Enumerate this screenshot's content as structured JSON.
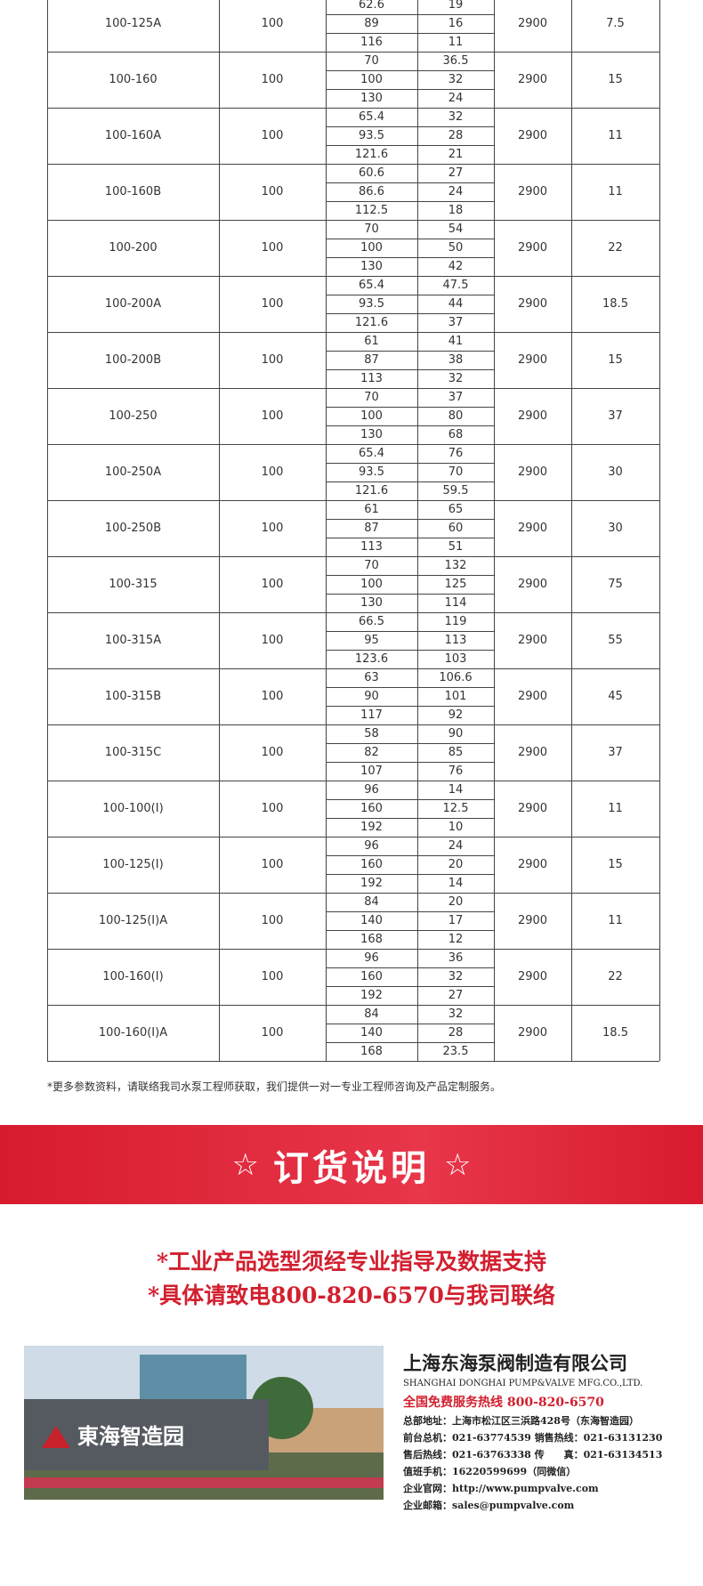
{
  "table": {
    "rows": [
      {
        "model": "100-125A",
        "caliber": "100",
        "flow": [
          "62.6",
          "89",
          "116"
        ],
        "head": [
          "19",
          "16",
          "11"
        ],
        "speed": "2900",
        "power": "7.5"
      },
      {
        "model": "100-160",
        "caliber": "100",
        "flow": [
          "70",
          "100",
          "130"
        ],
        "head": [
          "36.5",
          "32",
          "24"
        ],
        "speed": "2900",
        "power": "15"
      },
      {
        "model": "100-160A",
        "caliber": "100",
        "flow": [
          "65.4",
          "93.5",
          "121.6"
        ],
        "head": [
          "32",
          "28",
          "21"
        ],
        "speed": "2900",
        "power": "11"
      },
      {
        "model": "100-160B",
        "caliber": "100",
        "flow": [
          "60.6",
          "86.6",
          "112.5"
        ],
        "head": [
          "27",
          "24",
          "18"
        ],
        "speed": "2900",
        "power": "11"
      },
      {
        "model": "100-200",
        "caliber": "100",
        "flow": [
          "70",
          "100",
          "130"
        ],
        "head": [
          "54",
          "50",
          "42"
        ],
        "speed": "2900",
        "power": "22"
      },
      {
        "model": "100-200A",
        "caliber": "100",
        "flow": [
          "65.4",
          "93.5",
          "121.6"
        ],
        "head": [
          "47.5",
          "44",
          "37"
        ],
        "speed": "2900",
        "power": "18.5"
      },
      {
        "model": "100-200B",
        "caliber": "100",
        "flow": [
          "61",
          "87",
          "113"
        ],
        "head": [
          "41",
          "38",
          "32"
        ],
        "speed": "2900",
        "power": "15"
      },
      {
        "model": "100-250",
        "caliber": "100",
        "flow": [
          "70",
          "100",
          "130"
        ],
        "head": [
          "37",
          "80",
          "68"
        ],
        "speed": "2900",
        "power": "37"
      },
      {
        "model": "100-250A",
        "caliber": "100",
        "flow": [
          "65.4",
          "93.5",
          "121.6"
        ],
        "head": [
          "76",
          "70",
          "59.5"
        ],
        "speed": "2900",
        "power": "30"
      },
      {
        "model": "100-250B",
        "caliber": "100",
        "flow": [
          "61",
          "87",
          "113"
        ],
        "head": [
          "65",
          "60",
          "51"
        ],
        "speed": "2900",
        "power": "30"
      },
      {
        "model": "100-315",
        "caliber": "100",
        "flow": [
          "70",
          "100",
          "130"
        ],
        "head": [
          "132",
          "125",
          "114"
        ],
        "speed": "2900",
        "power": "75"
      },
      {
        "model": "100-315A",
        "caliber": "100",
        "flow": [
          "66.5",
          "95",
          "123.6"
        ],
        "head": [
          "119",
          "113",
          "103"
        ],
        "speed": "2900",
        "power": "55"
      },
      {
        "model": "100-315B",
        "caliber": "100",
        "flow": [
          "63",
          "90",
          "117"
        ],
        "head": [
          "106.6",
          "101",
          "92"
        ],
        "speed": "2900",
        "power": "45"
      },
      {
        "model": "100-315C",
        "caliber": "100",
        "flow": [
          "58",
          "82",
          "107"
        ],
        "head": [
          "90",
          "85",
          "76"
        ],
        "speed": "2900",
        "power": "37"
      },
      {
        "model": "100-100(I)",
        "caliber": "100",
        "flow": [
          "96",
          "160",
          "192"
        ],
        "head": [
          "14",
          "12.5",
          "10"
        ],
        "speed": "2900",
        "power": "11"
      },
      {
        "model": "100-125(I)",
        "caliber": "100",
        "flow": [
          "96",
          "160",
          "192"
        ],
        "head": [
          "24",
          "20",
          "14"
        ],
        "speed": "2900",
        "power": "15"
      },
      {
        "model": "100-125(I)A",
        "caliber": "100",
        "flow": [
          "84",
          "140",
          "168"
        ],
        "head": [
          "20",
          "17",
          "12"
        ],
        "speed": "2900",
        "power": "11"
      },
      {
        "model": "100-160(I)",
        "caliber": "100",
        "flow": [
          "96",
          "160",
          "192"
        ],
        "head": [
          "36",
          "32",
          "27"
        ],
        "speed": "2900",
        "power": "22"
      },
      {
        "model": "100-160(I)A",
        "caliber": "100",
        "flow": [
          "84",
          "140",
          "168"
        ],
        "head": [
          "32",
          "28",
          "23.5"
        ],
        "speed": "2900",
        "power": "18.5"
      }
    ]
  },
  "footnote": "*更多参数资料，请联络我司水泵工程师获取，我们提供一对一专业工程师咨询及产品定制服务。",
  "banner": {
    "title": "订货说明"
  },
  "notes": [
    "*工业产品选型须经专业指导及数据支持",
    "*具体请致电800-820-6570与我司联络"
  ],
  "photo": {
    "sign": "東海智造园"
  },
  "company": {
    "name": "上海东海泵阀制造有限公司",
    "english": "SHANGHAI DONGHAI PUMP&VALVE MFG.CO.,LTD.",
    "hotline": "全国免费服务热线  800-820-6570",
    "lines": [
      "总部地址：上海市松江区三浜路428号（东海智造园）",
      "前台总机：021-63774539  销售热线：021-63131230",
      "售后热线：021-63763338  传　　真：021-63134513",
      "值班手机：16220599699（同微信）",
      "企业官网：http://www.pumpvalve.com",
      "企业邮箱：sales@pumpvalve.com"
    ]
  }
}
